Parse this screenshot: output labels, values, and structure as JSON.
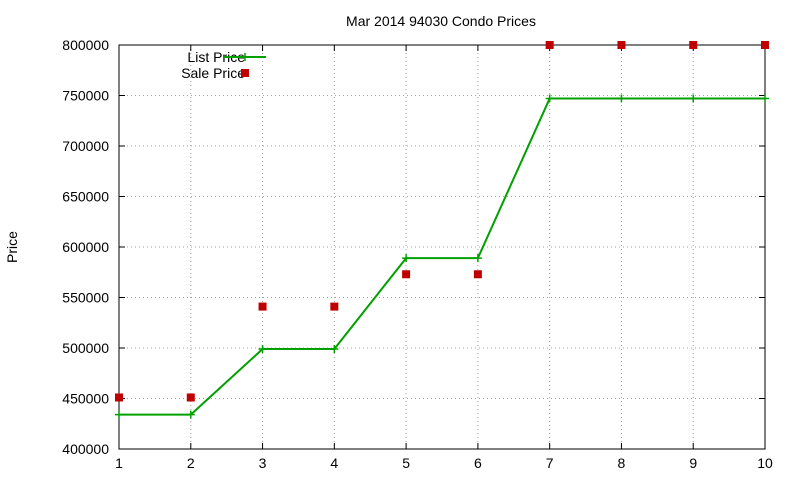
{
  "chart_data": {
    "type": "line",
    "title": "Mar 2014 94030 Condo Prices",
    "xlabel": "",
    "ylabel": "Price",
    "x": [
      1,
      2,
      3,
      4,
      5,
      6,
      7,
      8,
      9,
      10
    ],
    "xlim": [
      1,
      10
    ],
    "ylim": [
      400000,
      800000
    ],
    "xticks": [
      1,
      2,
      3,
      4,
      5,
      6,
      7,
      8,
      9,
      10
    ],
    "yticks": [
      400000,
      450000,
      500000,
      550000,
      600000,
      650000,
      700000,
      750000,
      800000
    ],
    "grid": true,
    "legend_position": "top-left",
    "series": [
      {
        "name": "List Price",
        "style": "lines-points",
        "color": "#00a000",
        "marker": "plus",
        "values": [
          434000,
          434000,
          499000,
          499000,
          589000,
          589000,
          747000,
          747000,
          747000,
          747000
        ]
      },
      {
        "name": "Sale Price",
        "style": "points",
        "color": "#c00000",
        "marker": "square",
        "values": [
          451000,
          451000,
          541000,
          541000,
          573000,
          573000,
          800000,
          800000,
          800000,
          800000
        ]
      }
    ]
  }
}
